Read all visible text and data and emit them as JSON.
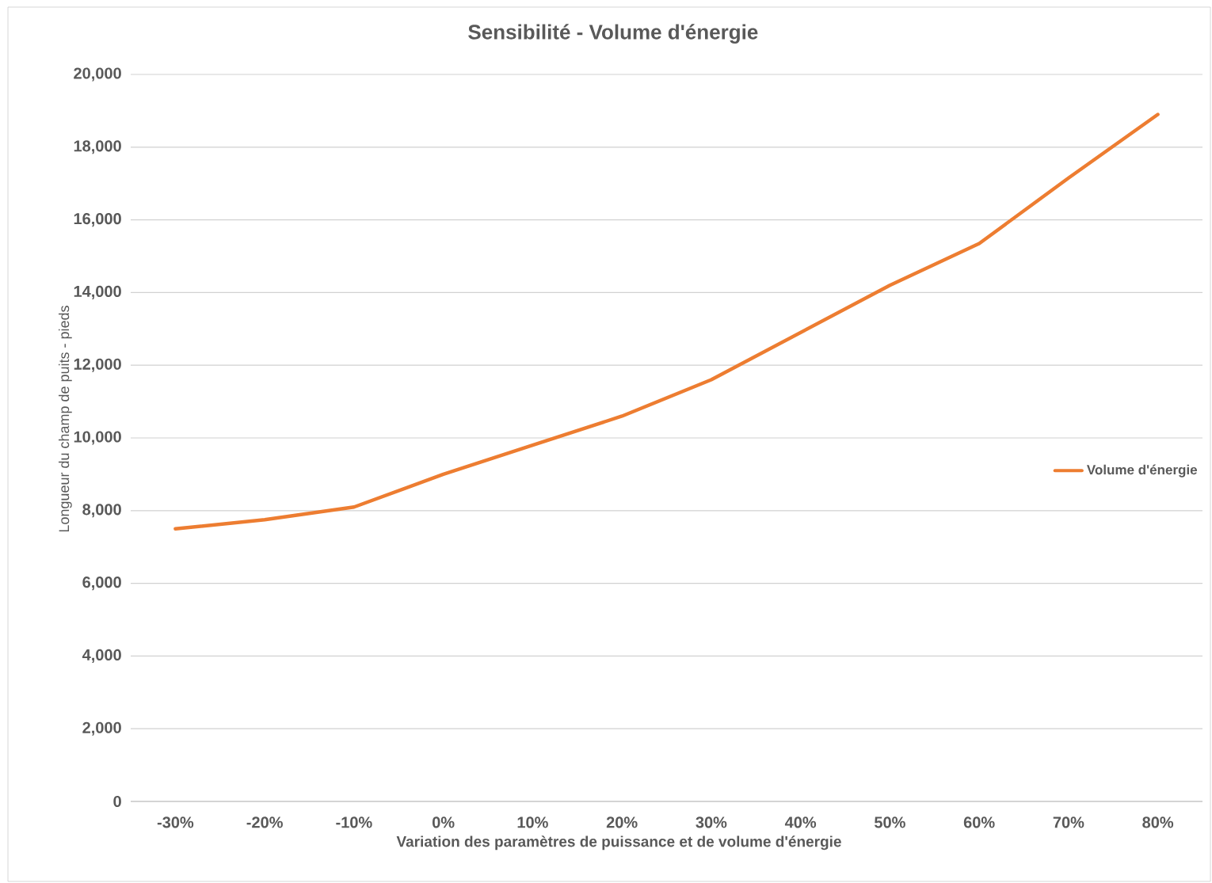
{
  "chart_data": {
    "type": "line",
    "title": "Sensibilité - Volume d'énergie",
    "xlabel": "Variation  des paramètres de puissance et de volume d'énergie",
    "ylabel": "Longueur du champ de puits - pieds",
    "categories": [
      "-30%",
      "-20%",
      "-10%",
      "0%",
      "10%",
      "20%",
      "30%",
      "40%",
      "50%",
      "60%",
      "70%",
      "80%"
    ],
    "series": [
      {
        "name": "Volume d'énergie",
        "color": "#ed7d31",
        "values": [
          7500,
          7750,
          8100,
          9000,
          9800,
          10600,
          11600,
          12900,
          14200,
          15350,
          17150,
          18900
        ]
      }
    ],
    "ylim": [
      0,
      20000
    ],
    "yticks": [
      {
        "value": 0,
        "label": "0"
      },
      {
        "value": 2000,
        "label": "2,000"
      },
      {
        "value": 4000,
        "label": "4,000"
      },
      {
        "value": 6000,
        "label": "6,000"
      },
      {
        "value": 8000,
        "label": "8,000"
      },
      {
        "value": 10000,
        "label": "10,000"
      },
      {
        "value": 12000,
        "label": "12,000"
      },
      {
        "value": 14000,
        "label": "14,000"
      },
      {
        "value": 16000,
        "label": "16,000"
      },
      {
        "value": 18000,
        "label": "18,000"
      },
      {
        "value": 20000,
        "label": "20,000"
      }
    ],
    "grid": "y",
    "legend": "right",
    "marker": "none",
    "line_style": "solid"
  }
}
